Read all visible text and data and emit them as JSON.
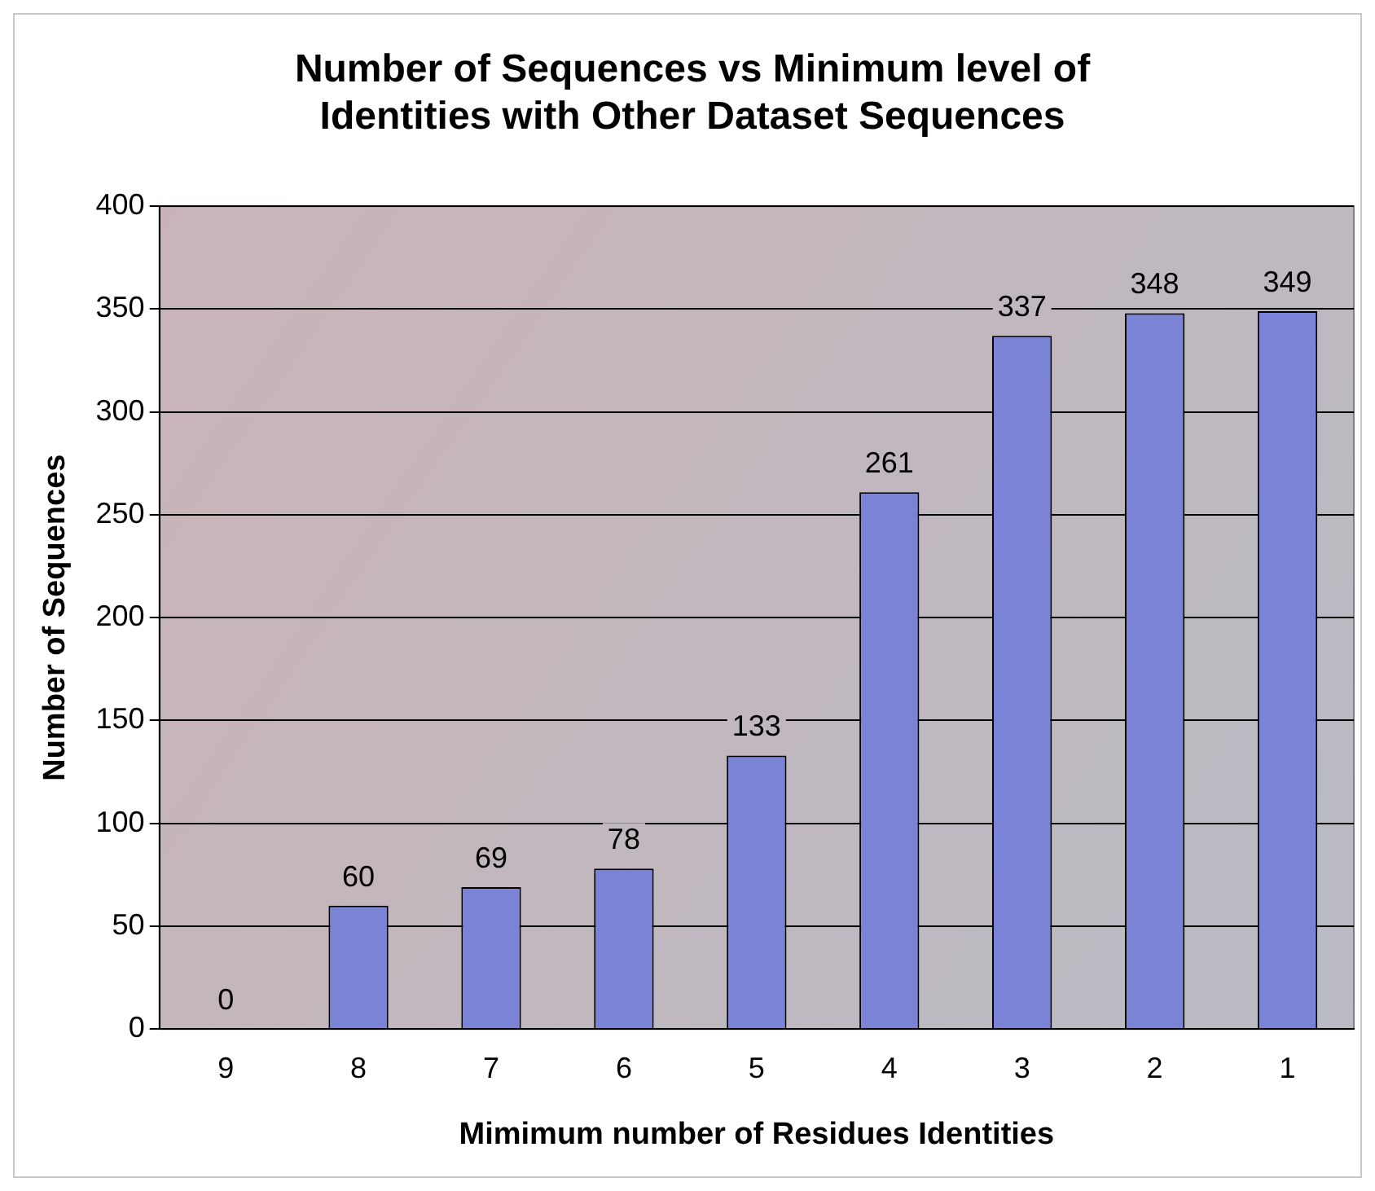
{
  "chart_data": {
    "type": "bar",
    "title": "Number of Sequences vs Minimum level of Identities with Other Dataset Sequences",
    "xlabel": "Mimimum number of Residues Identities",
    "ylabel": "Number of Sequences",
    "categories": [
      "9",
      "8",
      "7",
      "6",
      "5",
      "4",
      "3",
      "2",
      "1"
    ],
    "values": [
      0,
      60,
      69,
      78,
      133,
      261,
      337,
      348,
      349
    ],
    "color": "#7b83d6",
    "ylim": [
      0,
      400
    ],
    "yticks": [
      0,
      50,
      100,
      150,
      200,
      250,
      300,
      350,
      400
    ],
    "grid": "y",
    "data_labels": true,
    "legend": false
  }
}
